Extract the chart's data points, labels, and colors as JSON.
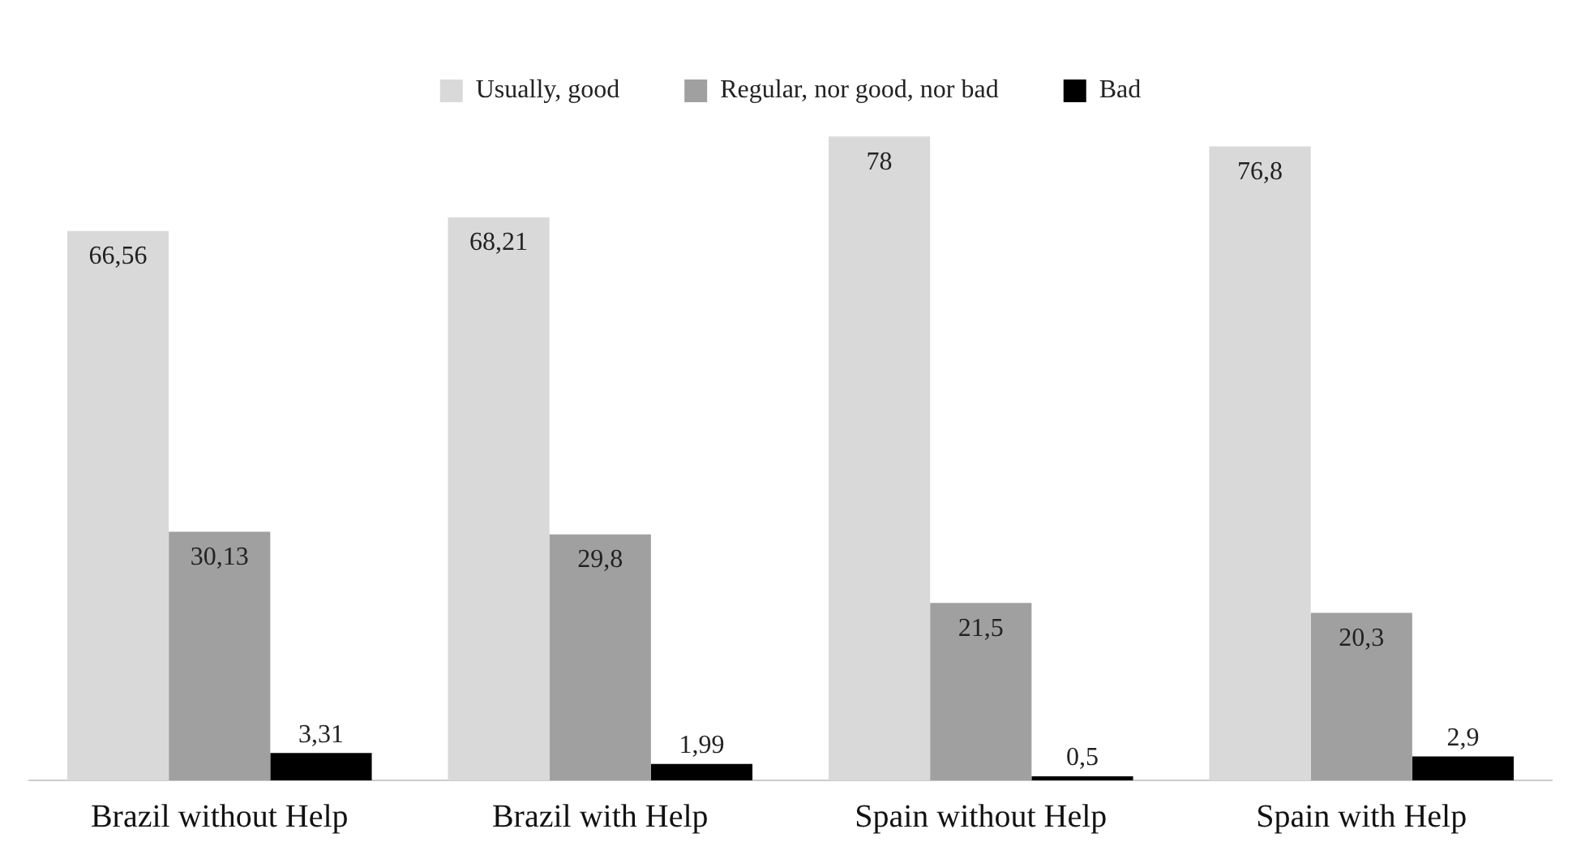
{
  "chart_data": {
    "type": "bar",
    "categories": [
      "Brazil without Help",
      "Brazil with Help",
      "Spain without Help",
      "Spain with Help"
    ],
    "series": [
      {
        "name": "Usually, good",
        "color": "#d9d9d9",
        "values": [
          66.56,
          68.21,
          78,
          76.8
        ],
        "value_labels": [
          "66,56",
          "68,21",
          "78",
          "76,8"
        ]
      },
      {
        "name": "Regular, nor good, nor bad",
        "color": "#a0a0a0",
        "values": [
          30.13,
          29.8,
          21.5,
          20.3
        ],
        "value_labels": [
          "30,13",
          "29,8",
          "21,5",
          "20,3"
        ]
      },
      {
        "name": "Bad",
        "color": "#000000",
        "values": [
          3.31,
          1.99,
          0.5,
          2.9
        ],
        "value_labels": [
          "3,31",
          "1,99",
          "0,5",
          "2,9"
        ]
      }
    ],
    "legend": "top",
    "grid": false
  }
}
